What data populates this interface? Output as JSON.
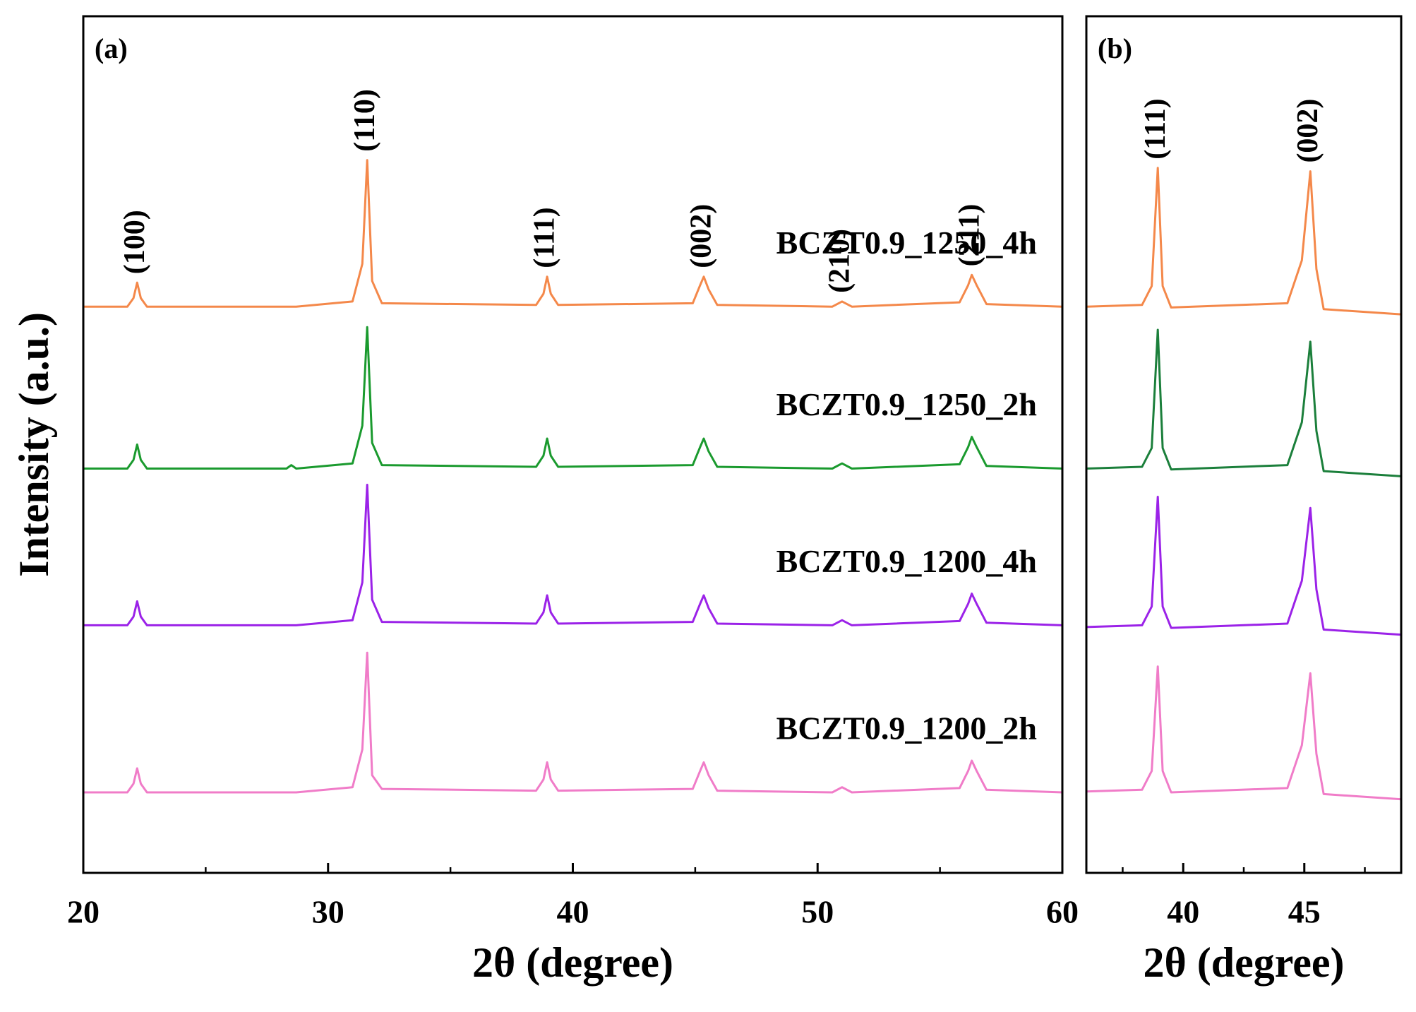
{
  "chart_data": [
    {
      "type": "line",
      "panel_label": "(a)",
      "xlabel": "2θ (degree)",
      "ylabel": "Intensity (a.u.)",
      "xlim": [
        20,
        60
      ],
      "xticks": [
        20,
        30,
        40,
        50,
        60
      ],
      "xminorticks": [
        25,
        35,
        45,
        55
      ],
      "ylim": [
        0,
        100
      ],
      "x": [
        20,
        21.8,
        22.05,
        22.2,
        22.35,
        22.6,
        28.3,
        28.5,
        28.7,
        31.0,
        31.4,
        31.6,
        31.8,
        32.2,
        38.5,
        38.8,
        38.95,
        39.1,
        39.4,
        44.9,
        45.2,
        45.35,
        45.55,
        45.9,
        50.6,
        51.0,
        51.4,
        55.8,
        56.15,
        56.3,
        56.5,
        56.9,
        60
      ],
      "series": [
        {
          "name": "BCZT0.9_1250_4h",
          "color": "#f4884a",
          "values": [
            66.1,
            66.1,
            67.1,
            68.9,
            67.1,
            66.1,
            66.1,
            66.1,
            66.1,
            66.7,
            71.1,
            83.2,
            69.1,
            66.5,
            66.3,
            67.6,
            69.6,
            67.6,
            66.3,
            66.5,
            68.6,
            69.6,
            68.1,
            66.3,
            66.1,
            66.7,
            66.1,
            66.6,
            68.6,
            69.8,
            68.6,
            66.4,
            66.1
          ]
        },
        {
          "name": "BCZT0.9_1250_2h",
          "color": "#1a9a2e",
          "values": [
            47.2,
            47.2,
            48.2,
            50.0,
            48.2,
            47.2,
            47.2,
            47.6,
            47.2,
            47.8,
            52.2,
            63.7,
            50.2,
            47.6,
            47.4,
            48.7,
            50.7,
            48.7,
            47.4,
            47.6,
            49.7,
            50.7,
            49.2,
            47.4,
            47.2,
            47.8,
            47.2,
            47.7,
            49.7,
            50.9,
            49.7,
            47.5,
            47.2
          ]
        },
        {
          "name": "BCZT0.9_1200_4h",
          "color": "#9b22e8",
          "values": [
            28.9,
            28.9,
            29.9,
            31.7,
            29.9,
            28.9,
            28.9,
            28.9,
            28.9,
            29.5,
            33.9,
            45.3,
            31.9,
            29.3,
            29.1,
            30.4,
            32.4,
            30.4,
            29.1,
            29.3,
            31.4,
            32.4,
            30.9,
            29.1,
            28.9,
            29.5,
            28.9,
            29.4,
            31.4,
            32.6,
            31.4,
            29.2,
            28.9
          ]
        },
        {
          "name": "BCZT0.9_1200_2h",
          "color": "#f07cc8",
          "values": [
            9.4,
            9.4,
            10.4,
            12.2,
            10.4,
            9.4,
            9.4,
            9.4,
            9.4,
            10.0,
            14.4,
            25.7,
            11.4,
            9.8,
            9.6,
            10.9,
            12.9,
            10.9,
            9.6,
            9.8,
            11.9,
            12.9,
            11.4,
            9.6,
            9.4,
            10.0,
            9.4,
            9.9,
            11.9,
            13.1,
            11.9,
            9.7,
            9.4
          ]
        }
      ],
      "annotations": [
        {
          "text": "(100)",
          "x": 22.2
        },
        {
          "text": "(110)",
          "x": 31.6
        },
        {
          "text": "(111)",
          "x": 38.95
        },
        {
          "text": "(002)",
          "x": 45.35
        },
        {
          "text": "(210)",
          "x": 51.0
        },
        {
          "text": "(211)",
          "x": 56.3
        }
      ]
    },
    {
      "type": "line",
      "panel_label": "(b)",
      "xlabel": "2θ (degree)",
      "xlim": [
        36,
        49
      ],
      "xticks": [
        40,
        45
      ],
      "xminorticks": [
        37.5,
        42.5,
        47.5
      ],
      "ylim": [
        0,
        100
      ],
      "x": [
        36,
        38.3,
        38.7,
        38.95,
        39.15,
        39.5,
        44.3,
        44.9,
        45.25,
        45.5,
        45.8,
        49
      ],
      "series": [
        {
          "color": "#f4884a",
          "values": [
            66.1,
            66.3,
            68.5,
            82.3,
            68.5,
            66.0,
            66.5,
            71.5,
            81.9,
            70.5,
            65.8,
            65.2
          ]
        },
        {
          "color": "#1b7f3b",
          "values": [
            47.2,
            47.4,
            49.6,
            63.4,
            49.6,
            47.1,
            47.6,
            52.6,
            62.0,
            51.6,
            46.9,
            46.3
          ]
        },
        {
          "color": "#9b22e8",
          "values": [
            28.7,
            28.9,
            31.1,
            43.9,
            31.1,
            28.6,
            29.1,
            34.1,
            42.6,
            33.1,
            28.4,
            27.8
          ]
        },
        {
          "color": "#f07cc8",
          "values": [
            9.5,
            9.7,
            11.9,
            24.1,
            11.9,
            9.4,
            9.9,
            14.9,
            23.3,
            13.9,
            9.2,
            8.6
          ]
        }
      ],
      "annotations": [
        {
          "text": "(111)",
          "x": 38.95
        },
        {
          "text": "(002)",
          "x": 45.25
        }
      ]
    }
  ]
}
